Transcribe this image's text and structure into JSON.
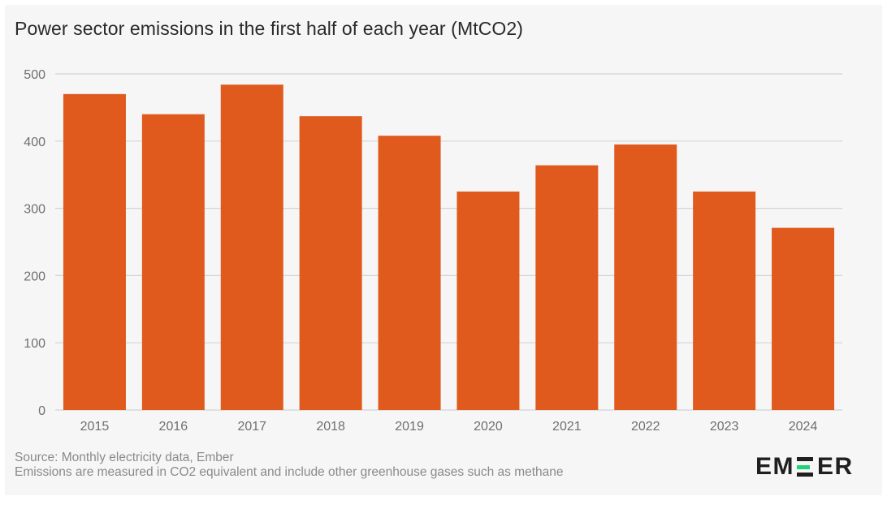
{
  "title": "Power sector emissions in the first half of each year (MtCO2)",
  "source_line1": "Source: Monthly electricity data, Ember",
  "source_line2": "Emissions are measured in CO2 equivalent and include other greenhouse gases such as methane",
  "logo": {
    "text": "EMBER",
    "accent_color": "#1fd37c"
  },
  "colors": {
    "bar": "#e05a1e",
    "grid": "#d4d4d4",
    "background": "#f6f6f6"
  },
  "chart_data": {
    "type": "bar",
    "title": "Power sector emissions in the first half of each year (MtCO2)",
    "xlabel": "",
    "ylabel": "",
    "categories": [
      "2015",
      "2016",
      "2017",
      "2018",
      "2019",
      "2020",
      "2021",
      "2022",
      "2023",
      "2024"
    ],
    "values": [
      470,
      440,
      484,
      437,
      408,
      325,
      364,
      395,
      325,
      271
    ],
    "ylim": [
      0,
      500
    ],
    "yticks": [
      0,
      100,
      200,
      300,
      400,
      500
    ],
    "grid": true,
    "legend": "none"
  }
}
